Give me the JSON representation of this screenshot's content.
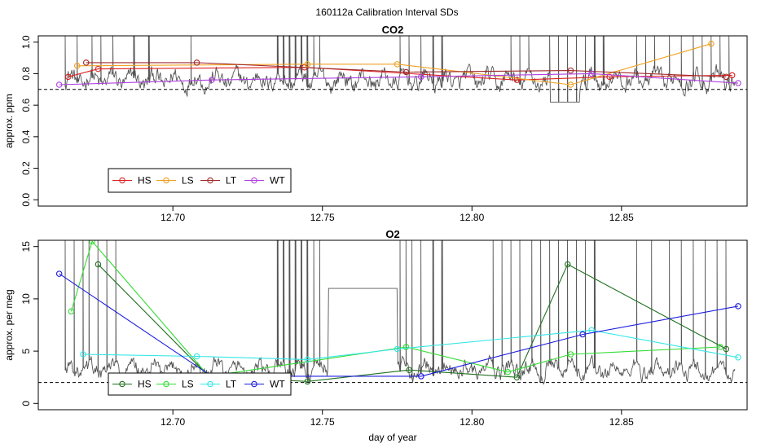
{
  "figure_title": "160112a   Calibration Interval SDs",
  "chart_data": [
    {
      "type": "line",
      "title": "CO2",
      "xlabel": "",
      "ylabel": "approx. ppm",
      "xlim": [
        12.655,
        12.892
      ],
      "ylim": [
        -0.04,
        1.04
      ],
      "xticks": [
        12.7,
        12.75,
        12.8,
        12.85
      ],
      "xtick_labels": [
        "12.70",
        "12.75",
        "12.80",
        "12.85"
      ],
      "yticks": [
        0.0,
        0.2,
        0.4,
        0.6,
        0.8,
        1.0
      ],
      "ytick_labels": [
        "0.0",
        "0.2",
        "0.4",
        "0.6",
        "0.8",
        "1.0"
      ],
      "reference_line": 0.7,
      "legend_position": "bottom-left",
      "background": {
        "name": "continuous SD trace",
        "color": "#555555",
        "baseline": 0.76,
        "amplitude": 0.09,
        "spikes_x": [
          12.661,
          12.664,
          12.668,
          12.673,
          12.676,
          12.68,
          12.687,
          12.692,
          12.706,
          12.735,
          12.737,
          12.739,
          12.741,
          12.743,
          12.745,
          12.747,
          12.749,
          12.776,
          12.779,
          12.783,
          12.787,
          12.79,
          12.813,
          12.816,
          12.819,
          12.826,
          12.829,
          12.832,
          12.835,
          12.838,
          12.841,
          12.844,
          12.855,
          12.858,
          12.861,
          12.866,
          12.87,
          12.874,
          12.877,
          12.88,
          12.883,
          12.886
        ],
        "gap": [
          12.826,
          12.836,
          0.62
        ]
      },
      "series": [
        {
          "name": "HS",
          "color": "#dd2222",
          "x": [
            12.665,
            12.675,
            12.744,
            12.815,
            12.846,
            12.887
          ],
          "y": [
            0.78,
            0.83,
            0.84,
            0.76,
            0.78,
            0.79
          ]
        },
        {
          "name": "LS",
          "color": "#f0a020",
          "x": [
            12.668,
            12.745,
            12.775,
            12.833,
            12.88
          ],
          "y": [
            0.85,
            0.86,
            0.86,
            0.73,
            0.99
          ]
        },
        {
          "name": "LT",
          "color": "#a02828",
          "x": [
            12.671,
            12.708,
            12.778,
            12.833,
            12.885
          ],
          "y": [
            0.87,
            0.87,
            0.81,
            0.82,
            0.78
          ]
        },
        {
          "name": "WT",
          "color": "#b040e0",
          "x": [
            12.662,
            12.713,
            12.783,
            12.84,
            12.889
          ],
          "y": [
            0.73,
            0.76,
            0.78,
            0.8,
            0.74
          ]
        }
      ]
    },
    {
      "type": "line",
      "title": "O2",
      "xlabel": "day of year",
      "ylabel": "approx. per meg",
      "xlim": [
        12.655,
        12.892
      ],
      "ylim": [
        -0.6,
        15.6
      ],
      "xticks": [
        12.7,
        12.75,
        12.8,
        12.85
      ],
      "xtick_labels": [
        "12.70",
        "12.75",
        "12.80",
        "12.85"
      ],
      "yticks": [
        0,
        5,
        10,
        15
      ],
      "ytick_labels": [
        "0",
        "5",
        "10",
        "15"
      ],
      "reference_line": 2.0,
      "legend_position": "bottom-left",
      "background": {
        "name": "continuous SD trace",
        "color": "#555555",
        "baseline": 3.2,
        "amplitude": 1.2,
        "spikes_x": [
          12.661,
          12.664,
          12.667,
          12.67,
          12.672,
          12.675,
          12.678,
          12.681,
          12.735,
          12.737,
          12.739,
          12.741,
          12.743,
          12.745,
          12.747,
          12.749,
          12.776,
          12.778,
          12.78,
          12.783,
          12.787,
          12.79,
          12.807,
          12.81,
          12.813,
          12.816,
          12.82,
          12.823,
          12.826,
          12.829,
          12.832,
          12.835,
          12.838,
          12.841,
          12.855,
          12.86,
          12.866,
          12.87,
          12.874,
          12.878,
          12.882,
          12.885
        ],
        "gap": [
          12.752,
          12.775,
          11.0
        ]
      },
      "series": [
        {
          "name": "HS",
          "color": "#207020",
          "x": [
            12.675,
            12.712,
            12.745,
            12.779,
            12.815,
            12.832,
            12.885
          ],
          "y": [
            13.3,
            2.6,
            2.1,
            3.2,
            2.5,
            13.3,
            5.2
          ]
        },
        {
          "name": "LS",
          "color": "#33dd33",
          "x": [
            12.666,
            12.673,
            12.712,
            12.778,
            12.812,
            12.833,
            12.883
          ],
          "y": [
            8.8,
            15.5,
            2.6,
            5.4,
            3.0,
            4.7,
            5.4
          ]
        },
        {
          "name": "LT",
          "color": "#33e6e6",
          "x": [
            12.67,
            12.708,
            12.745,
            12.775,
            12.84,
            12.889
          ],
          "y": [
            4.7,
            4.5,
            4.2,
            5.2,
            7.0,
            4.4
          ]
        },
        {
          "name": "WT",
          "color": "#1c1ce0",
          "x": [
            12.662,
            12.713,
            12.783,
            12.837,
            12.889
          ],
          "y": [
            12.4,
            2.6,
            2.6,
            6.6,
            9.3
          ]
        }
      ]
    }
  ]
}
